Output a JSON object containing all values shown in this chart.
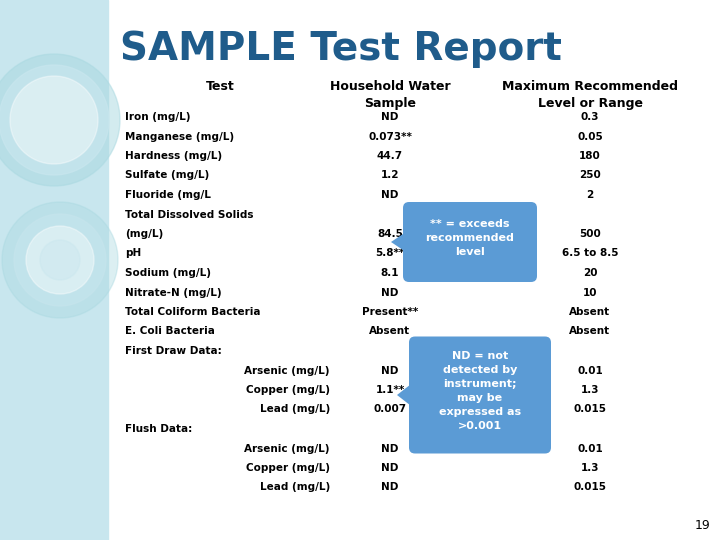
{
  "title": "SAMPLE Test Report",
  "title_color": "#1F5C8B",
  "bg_color": "#FFFFFF",
  "left_panel_color": "#C8E6EE",
  "rows": [
    [
      "Iron (mg/L)",
      "ND",
      "0.3",
      false
    ],
    [
      "Manganese (mg/L)",
      "0.073**",
      "0.05",
      false
    ],
    [
      "Hardness (mg/L)",
      "44.7",
      "180",
      false
    ],
    [
      "Sulfate (mg/L)",
      "1.2",
      "250",
      false
    ],
    [
      "Fluoride (mg/L",
      "ND",
      "2",
      false
    ],
    [
      "Total Dissolved Solids",
      "",
      "",
      false
    ],
    [
      "(mg/L)",
      "84.5",
      "500",
      false
    ],
    [
      "pH",
      "5.8**",
      "6.5 to 8.5",
      false
    ],
    [
      "Sodium (mg/L)",
      "8.1",
      "20",
      false
    ],
    [
      "Nitrate-N (mg/L)",
      "ND",
      "10",
      false
    ],
    [
      "Total Coliform Bacteria",
      "Present**",
      "Absent",
      false
    ],
    [
      "E. Coli Bacteria",
      "Absent",
      "Absent",
      false
    ],
    [
      "First Draw Data:",
      "",
      "",
      true
    ],
    [
      "Arsenic (mg/L)",
      "ND",
      "0.01",
      false
    ],
    [
      "Copper (mg/L)",
      "1.1**",
      "1.3",
      false
    ],
    [
      "Lead (mg/L)",
      "0.007",
      "0.015",
      false
    ],
    [
      "Flush Data:",
      "",
      "",
      true
    ],
    [
      "Arsenic (mg/L)",
      "ND",
      "0.01",
      false
    ],
    [
      "Copper (mg/L)",
      "ND",
      "1.3",
      false
    ],
    [
      "Lead (mg/L)",
      "ND",
      "0.015",
      false
    ]
  ],
  "indented_rows": [
    13,
    14,
    15,
    17,
    18,
    19
  ],
  "section_rows": [
    12,
    16
  ],
  "tooltip1_text": "** = exceeds\nrecommended\nlevel",
  "tooltip1_color": "#5B9BD5",
  "tooltip2_text": "ND = not\ndetected by\ninstrument;\nmay be\nexpressed as\n>0.001",
  "tooltip2_color": "#5B9BD5",
  "page_number": "19"
}
